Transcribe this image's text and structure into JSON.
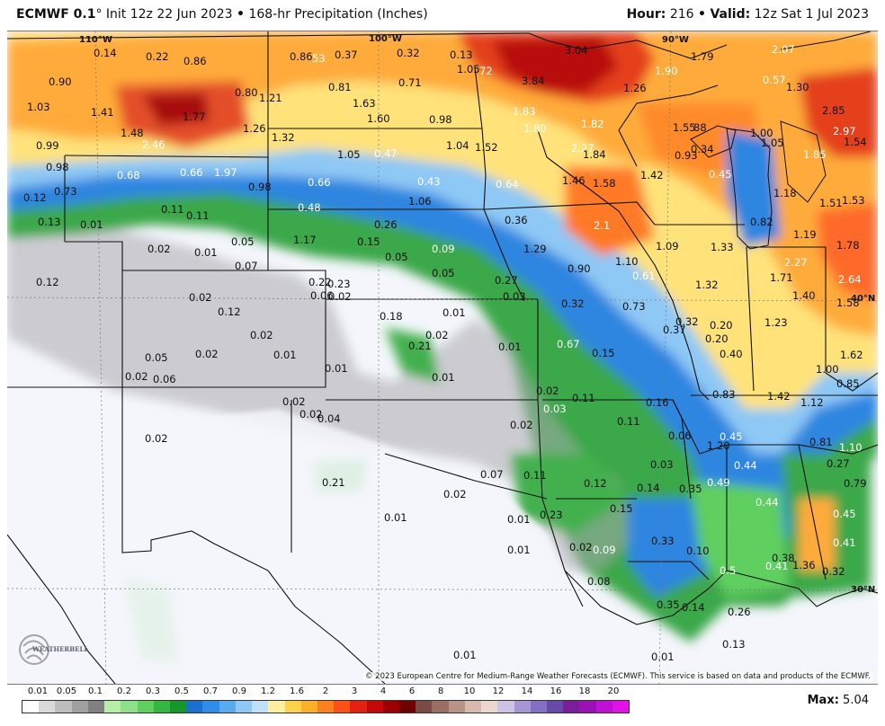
{
  "header": {
    "model": "ECMWF 0.1",
    "degree": "°",
    "init": "Init 12z 22 Jun 2023",
    "bullet1": "•",
    "product": "168-hr Precipitation (Inches)",
    "hour_label": "Hour:",
    "hour_value": "216",
    "bullet2": "•",
    "valid_label": "Valid:",
    "valid_value": "12z Sat 1 Jul 2023"
  },
  "map": {
    "longitude_labels": [
      {
        "text": "110°W",
        "x": 80,
        "y": 4
      },
      {
        "text": "100°W",
        "x": 402,
        "y": 3
      },
      {
        "text": "90°W",
        "x": 728,
        "y": 4
      }
    ],
    "latitude_labels": [
      {
        "text": "40°N",
        "x": 938,
        "y": 292
      },
      {
        "text": "30°N",
        "x": 938,
        "y": 616
      }
    ],
    "values": [
      [
        "0.14",
        96,
        18,
        "d"
      ],
      [
        "0.22",
        154,
        22,
        "d"
      ],
      [
        "0.86",
        196,
        27,
        "d"
      ],
      [
        "0.86",
        314,
        22,
        "d"
      ],
      [
        "53",
        339,
        24,
        "l"
      ],
      [
        "0.37",
        364,
        20,
        "d"
      ],
      [
        "0.32",
        433,
        18,
        "d"
      ],
      [
        "0.13",
        492,
        20,
        "d"
      ],
      [
        "1.05",
        500,
        36,
        "d"
      ],
      [
        "72",
        525,
        38,
        "l"
      ],
      [
        "3.04",
        620,
        15,
        "d"
      ],
      [
        "1.90",
        720,
        38,
        "l"
      ],
      [
        "1.79",
        760,
        22,
        "d"
      ],
      [
        "2.07",
        850,
        14,
        "l"
      ],
      [
        "0.90",
        46,
        50,
        "d"
      ],
      [
        "0.80",
        253,
        62,
        "d"
      ],
      [
        "1.21",
        280,
        68,
        "d"
      ],
      [
        "0.81",
        357,
        56,
        "d"
      ],
      [
        "0.71",
        435,
        51,
        "d"
      ],
      [
        "3.84",
        572,
        49,
        "d"
      ],
      [
        "1.26",
        685,
        57,
        "d"
      ],
      [
        "0.57",
        840,
        48,
        "l"
      ],
      [
        "1.30",
        866,
        56,
        "d"
      ],
      [
        "1.03",
        22,
        78,
        "d"
      ],
      [
        "1.41",
        93,
        84,
        "d"
      ],
      [
        "1.77",
        195,
        89,
        "d"
      ],
      [
        "1.63",
        384,
        74,
        "d"
      ],
      [
        "1.83",
        562,
        83,
        "l"
      ],
      [
        "1.60",
        400,
        91,
        "d"
      ],
      [
        "0.98",
        469,
        92,
        "d"
      ],
      [
        "1.26",
        262,
        102,
        "d"
      ],
      [
        "1.48",
        126,
        107,
        "d"
      ],
      [
        "1.80",
        574,
        102,
        "l"
      ],
      [
        "1.82",
        638,
        97,
        "l"
      ],
      [
        "1.55",
        740,
        101,
        "d"
      ],
      [
        "88",
        763,
        101,
        "d"
      ],
      [
        "1.00",
        826,
        107,
        "d"
      ],
      [
        "2.85",
        906,
        82,
        "d"
      ],
      [
        "2.97",
        918,
        105,
        "l"
      ],
      [
        "1.32",
        294,
        112,
        "d"
      ],
      [
        "1.04",
        488,
        121,
        "d"
      ],
      [
        "1.52",
        520,
        123,
        "d"
      ],
      [
        "2.46",
        150,
        120,
        "l"
      ],
      [
        "0.99",
        32,
        121,
        "d"
      ],
      [
        "2.27",
        627,
        124,
        "l"
      ],
      [
        "1.84",
        640,
        131,
        "d"
      ],
      [
        "1.05",
        838,
        118,
        "d"
      ],
      [
        "1.54",
        930,
        117,
        "d"
      ],
      [
        "0.34",
        760,
        125,
        "d"
      ],
      [
        "0.93",
        742,
        132,
        "d"
      ],
      [
        "1.05",
        367,
        131,
        "d"
      ],
      [
        "0.47",
        408,
        130,
        "l"
      ],
      [
        "1.85",
        885,
        131,
        "l"
      ],
      [
        "0.98",
        43,
        145,
        "d"
      ],
      [
        "0.68",
        122,
        154,
        "l"
      ],
      [
        "0.66",
        192,
        151,
        "l"
      ],
      [
        "1.97",
        230,
        151,
        "l"
      ],
      [
        "1.42",
        704,
        154,
        "d"
      ],
      [
        "0.45",
        780,
        153,
        "l"
      ],
      [
        "1.46",
        617,
        160,
        "d"
      ],
      [
        "1.58",
        651,
        163,
        "d"
      ],
      [
        "0.66",
        334,
        162,
        "l"
      ],
      [
        "0.43",
        456,
        161,
        "l"
      ],
      [
        "0.64",
        543,
        164,
        "l"
      ],
      [
        "0.98",
        268,
        167,
        "d"
      ],
      [
        "0.12",
        18,
        179,
        "d"
      ],
      [
        "0.73",
        52,
        172,
        "d"
      ],
      [
        "1.06",
        446,
        183,
        "d"
      ],
      [
        "0.48",
        323,
        190,
        "l"
      ],
      [
        "0.11",
        171,
        192,
        "d"
      ],
      [
        "0.11",
        199,
        199,
        "d"
      ],
      [
        "1.18",
        852,
        174,
        "d"
      ],
      [
        "1.51",
        903,
        185,
        "d"
      ],
      [
        "1.53",
        928,
        182,
        "d"
      ],
      [
        "0.82",
        826,
        206,
        "d"
      ],
      [
        "0.36",
        553,
        204,
        "d"
      ],
      [
        "0.13",
        34,
        206,
        "d"
      ],
      [
        "0.01",
        81,
        209,
        "d"
      ],
      [
        "0.26",
        408,
        209,
        "d"
      ],
      [
        "2.1",
        652,
        210,
        "l"
      ],
      [
        "1.19",
        874,
        220,
        "d"
      ],
      [
        "1.78",
        922,
        232,
        "d"
      ],
      [
        "1.17",
        318,
        226,
        "d"
      ],
      [
        "0.15",
        389,
        228,
        "d"
      ],
      [
        "0.09",
        472,
        236,
        "l"
      ],
      [
        "1.29",
        574,
        236,
        "d"
      ],
      [
        "1.09",
        721,
        233,
        "d"
      ],
      [
        "1.33",
        782,
        234,
        "d"
      ],
      [
        "0.02",
        156,
        236,
        "d"
      ],
      [
        "0.01",
        208,
        240,
        "d"
      ],
      [
        "0.05",
        249,
        228,
        "d"
      ],
      [
        "0.05",
        420,
        245,
        "d"
      ],
      [
        "2.27",
        864,
        251,
        "l"
      ],
      [
        "1.10",
        676,
        250,
        "d"
      ],
      [
        "0.07",
        253,
        255,
        "d"
      ],
      [
        "0.90",
        623,
        258,
        "d"
      ],
      [
        "0.05",
        472,
        263,
        "d"
      ],
      [
        "0.61",
        695,
        266,
        "l"
      ],
      [
        "1.71",
        848,
        268,
        "d"
      ],
      [
        "2.64",
        924,
        270,
        "l"
      ],
      [
        "0.12",
        32,
        273,
        "d"
      ],
      [
        "0.22",
        335,
        273,
        "d"
      ],
      [
        "0.23",
        356,
        275,
        "d"
      ],
      [
        "0.27",
        542,
        271,
        "d"
      ],
      [
        "1.32",
        765,
        276,
        "d"
      ],
      [
        "0.06",
        337,
        288,
        "d"
      ],
      [
        "0.02",
        357,
        289,
        "d"
      ],
      [
        "0.02",
        202,
        290,
        "d"
      ],
      [
        "0.03",
        551,
        289,
        "d"
      ],
      [
        "1.40",
        873,
        288,
        "d"
      ],
      [
        "0.32",
        616,
        297,
        "d"
      ],
      [
        "0.73",
        684,
        300,
        "d"
      ],
      [
        "1.58",
        922,
        296,
        "d"
      ],
      [
        "0.12",
        234,
        306,
        "d"
      ],
      [
        "0.18",
        414,
        311,
        "d"
      ],
      [
        "0.01",
        484,
        307,
        "d"
      ],
      [
        "0.32",
        743,
        317,
        "d"
      ],
      [
        "0.20",
        781,
        321,
        "d"
      ],
      [
        "1.23",
        842,
        318,
        "d"
      ],
      [
        "0.37",
        729,
        326,
        "d"
      ],
      [
        "0.02",
        270,
        332,
        "d"
      ],
      [
        "0.02",
        465,
        332,
        "d"
      ],
      [
        "0.01",
        546,
        345,
        "d"
      ],
      [
        "0.21",
        446,
        344,
        "d"
      ],
      [
        "0.67",
        611,
        342,
        "l"
      ],
      [
        "0.15",
        650,
        352,
        "d"
      ],
      [
        "0.20",
        776,
        336,
        "d"
      ],
      [
        "0.40",
        792,
        353,
        "d"
      ],
      [
        "1.62",
        926,
        354,
        "d"
      ],
      [
        "0.02",
        209,
        353,
        "d"
      ],
      [
        "0.01",
        296,
        354,
        "d"
      ],
      [
        "0.05",
        153,
        357,
        "d"
      ],
      [
        "1.00",
        899,
        370,
        "d"
      ],
      [
        "0.02",
        131,
        378,
        "d"
      ],
      [
        "0.06",
        162,
        381,
        "d"
      ],
      [
        "0.01",
        353,
        369,
        "d"
      ],
      [
        "0.01",
        472,
        379,
        "d"
      ],
      [
        "0.85",
        922,
        386,
        "d"
      ],
      [
        "0.02",
        588,
        394,
        "d"
      ],
      [
        "0.11",
        628,
        402,
        "d"
      ],
      [
        "0.83",
        784,
        398,
        "d"
      ],
      [
        "1.42",
        845,
        400,
        "d"
      ],
      [
        "1.12",
        882,
        407,
        "d"
      ],
      [
        "0.16",
        710,
        407,
        "d"
      ],
      [
        "0.02",
        306,
        406,
        "d"
      ],
      [
        "0.03",
        596,
        414,
        "l"
      ],
      [
        "0.02",
        325,
        420,
        "d"
      ],
      [
        "0.04",
        345,
        425,
        "d"
      ],
      [
        "0.11",
        678,
        428,
        "d"
      ],
      [
        "0.02",
        559,
        432,
        "d"
      ],
      [
        "0.45",
        792,
        445,
        "l"
      ],
      [
        "0.06",
        735,
        444,
        "d"
      ],
      [
        "0.02",
        153,
        447,
        "d"
      ],
      [
        "1.20",
        778,
        455,
        "d"
      ],
      [
        "0.81",
        892,
        451,
        "d"
      ],
      [
        "1.10",
        925,
        457,
        "l"
      ],
      [
        "0.27",
        911,
        475,
        "d"
      ],
      [
        "0.03",
        715,
        476,
        "d"
      ],
      [
        "0.44",
        808,
        477,
        "l"
      ],
      [
        "0.07",
        526,
        487,
        "d"
      ],
      [
        "0.11",
        574,
        488,
        "d"
      ],
      [
        "0.21",
        350,
        496,
        "d"
      ],
      [
        "0.12",
        641,
        497,
        "d"
      ],
      [
        "0.14",
        700,
        502,
        "d"
      ],
      [
        "0.35",
        747,
        503,
        "d"
      ],
      [
        "0.49",
        778,
        496,
        "l"
      ],
      [
        "0.79",
        930,
        497,
        "d"
      ],
      [
        "0.02",
        485,
        509,
        "d"
      ],
      [
        "0.44",
        832,
        518,
        "l"
      ],
      [
        "0.15",
        670,
        525,
        "d"
      ],
      [
        "0.45",
        918,
        531,
        "l"
      ],
      [
        "0.23",
        592,
        532,
        "d"
      ],
      [
        "0.01",
        556,
        537,
        "d"
      ],
      [
        "0.01",
        419,
        535,
        "d"
      ],
      [
        "0.33",
        716,
        561,
        "d"
      ],
      [
        "0.41",
        918,
        563,
        "l"
      ],
      [
        "0.10",
        755,
        572,
        "d"
      ],
      [
        "0.02",
        625,
        568,
        "d"
      ],
      [
        "0.09",
        651,
        571,
        "l"
      ],
      [
        "0.01",
        556,
        571,
        "d"
      ],
      [
        "0.38",
        850,
        580,
        "d"
      ],
      [
        "0.41",
        843,
        589,
        "l"
      ],
      [
        "1.36",
        873,
        588,
        "d"
      ],
      [
        "0.5",
        792,
        594,
        "l"
      ],
      [
        "0.32",
        906,
        595,
        "d"
      ],
      [
        "0.08",
        645,
        606,
        "d"
      ],
      [
        "0.35",
        722,
        632,
        "d"
      ],
      [
        "0.14",
        750,
        635,
        "d"
      ],
      [
        "0.26",
        801,
        640,
        "d"
      ],
      [
        "0.13",
        795,
        676,
        "d"
      ],
      [
        "0.01",
        496,
        688,
        "d"
      ],
      [
        "0.01",
        716,
        690,
        "d"
      ]
    ]
  },
  "copyright": "© 2023 European Centre for Medium-Range Weather Forecasts (ECMWF). This service is based on data and products of the ECMWF.",
  "logo_text": "WEATHERBELL",
  "legend": {
    "labels": [
      "0.01",
      "0.05",
      "0.1",
      "0.2",
      "0.3",
      "0.5",
      "0.7",
      "0.9",
      "1.2",
      "1.6",
      "2",
      "3",
      "4",
      "6",
      "8",
      "10",
      "12",
      "14",
      "16",
      "18",
      "20"
    ],
    "colors": [
      "#ffffff",
      "#d9d9d9",
      "#bdbdbd",
      "#a0a0a0",
      "#808080",
      "#b7efa8",
      "#8fe08a",
      "#5fcf5f",
      "#35b640",
      "#16962b",
      "#1b6fcf",
      "#2f8ce8",
      "#5aaaf0",
      "#8ec8f5",
      "#bfe0f8",
      "#fff0a0",
      "#ffd24a",
      "#ffae2a",
      "#ff8020",
      "#ff5018",
      "#e42010",
      "#c40808",
      "#9a0000",
      "#6e0000",
      "#7a4a44",
      "#9a6e64",
      "#b89488",
      "#d7b9ae",
      "#ecd7cf",
      "#cdc3e6",
      "#a896d4",
      "#8470c2",
      "#6a4aa8",
      "#7a1e9c",
      "#9a12b4",
      "#c010d4",
      "#e012e8"
    ]
  },
  "max": {
    "label": "Max:",
    "value": "5.04"
  }
}
